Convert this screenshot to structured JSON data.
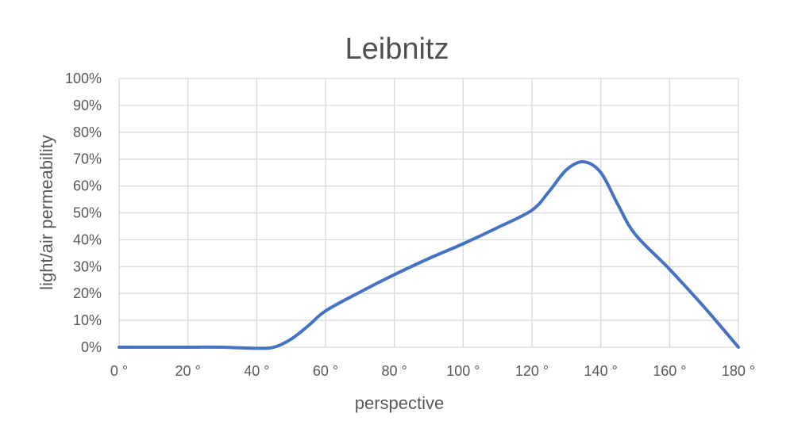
{
  "chart_data": {
    "type": "line",
    "title": "Leibnitz",
    "xlabel": "perspective",
    "ylabel": "light/air permeability",
    "xlim": [
      0,
      180
    ],
    "ylim": [
      0,
      100
    ],
    "x_ticks": [
      "0 °",
      "20 °",
      "40 °",
      "60 °",
      "80 °",
      "100 °",
      "120 °",
      "140 °",
      "160 °",
      "180 °"
    ],
    "y_ticks": [
      "0%",
      "10%",
      "20%",
      "30%",
      "40%",
      "50%",
      "60%",
      "70%",
      "80%",
      "90%",
      "100%"
    ],
    "grid": true,
    "line_color": "#4472C4",
    "series": [
      {
        "x": [
          0,
          10,
          20,
          30,
          40,
          45,
          50,
          55,
          60,
          70,
          80,
          90,
          100,
          110,
          120,
          125,
          130,
          135,
          140,
          145,
          150,
          160,
          170,
          180
        ],
        "y": [
          0,
          0,
          0,
          0,
          -0.4,
          0,
          3,
          8,
          13.5,
          20.5,
          27,
          33,
          38.5,
          44.5,
          51,
          58,
          66,
          69,
          65,
          53,
          42,
          29,
          15,
          0
        ]
      }
    ]
  }
}
